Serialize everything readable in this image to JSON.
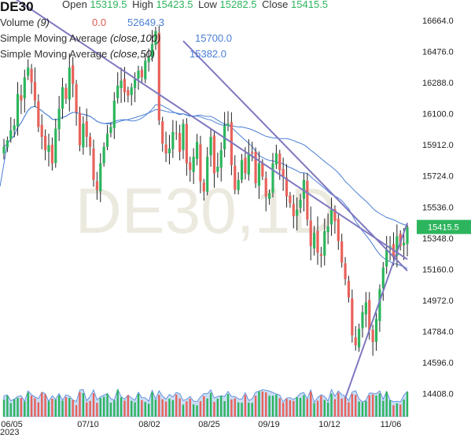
{
  "symbol": "DE30",
  "ohlc": {
    "open_label": "Open",
    "open": "15319.5",
    "high_label": "High",
    "high": "15423.5",
    "low_label": "Low",
    "low": "15282.5",
    "close_label": "Close",
    "close": "15415.5"
  },
  "volume": {
    "label": "Volume",
    "param": "(9)",
    "value": "0.0",
    "value2": "52649.3"
  },
  "sma100": {
    "label": "Simple Moving Average",
    "param": "(close,100)",
    "value": "15700.0"
  },
  "sma50": {
    "label": "Simple Moving Average",
    "param": "(close,50)",
    "value": "15382.0"
  },
  "watermark": "DE30,1D",
  "price_tag": "15415.5",
  "colors": {
    "up": "#2db55d",
    "down": "#e8625a",
    "sma": "#4a7fd6",
    "trend": "#7e78c0",
    "vol_area": "#9fc3ee",
    "tag": "#2db55d"
  },
  "chart_data": {
    "type": "candlestick",
    "y_ticks": [
      "16664.0",
      "16476.0",
      "16288.0",
      "16100.0",
      "15912.0",
      "15724.0",
      "15536.0",
      "15348.0",
      "15160.0",
      "14972.0",
      "14784.0",
      "14596.0",
      "14408.0"
    ],
    "x_ticks": [
      "06/05",
      "07/10",
      "08/02",
      "08/25",
      "09/19",
      "10/12",
      "11/06"
    ],
    "x_year": "2023",
    "ylim": [
      14380,
      16760
    ],
    "close_series": [
      15900,
      15940,
      16000,
      16030,
      16220,
      16180,
      16320,
      16380,
      16290,
      16180,
      16020,
      15960,
      15880,
      15910,
      15800,
      16010,
      16130,
      16260,
      16190,
      16380,
      16280,
      16110,
      15910,
      16040,
      15960,
      15900,
      15700,
      15640,
      15800,
      15900,
      15980,
      16020,
      16180,
      16270,
      16300,
      16230,
      16210,
      16260,
      16310,
      16360,
      16320,
      16420,
      16440,
      16520,
      16600,
      16060,
      15920,
      15860,
      15890,
      15990,
      15980,
      15870,
      16040,
      15800,
      15760,
      15840,
      15930,
      15690,
      15630,
      15840,
      15960,
      15740,
      15780,
      15880,
      16030,
      16040,
      15790,
      15640,
      15700,
      15820,
      15740,
      15860,
      15860,
      15680,
      15800,
      15720,
      15600,
      15620,
      15800,
      15860,
      15760,
      15720,
      15600,
      15560,
      15480,
      15520,
      15580,
      15700,
      15460,
      15300,
      15380,
      15260,
      15240,
      15390,
      15420,
      15520,
      15450,
      15330,
      15200,
      15100,
      14990,
      14760,
      14700,
      14800,
      14900,
      14960,
      14790,
      14720,
      14860,
      15040,
      15170,
      15280,
      15300,
      15230,
      15360,
      15300,
      15320,
      15415
    ]
  },
  "trendlines": [
    {
      "label": "upper-channel",
      "p1": [
        0,
        16840
      ],
      "p2": [
        117,
        15220
      ]
    },
    {
      "label": "middle-channel",
      "p1": [
        52,
        16540
      ],
      "p2": [
        117,
        15150
      ]
    },
    {
      "label": "support",
      "p1": [
        99,
        14380
      ],
      "p2": [
        117,
        15440
      ]
    }
  ]
}
